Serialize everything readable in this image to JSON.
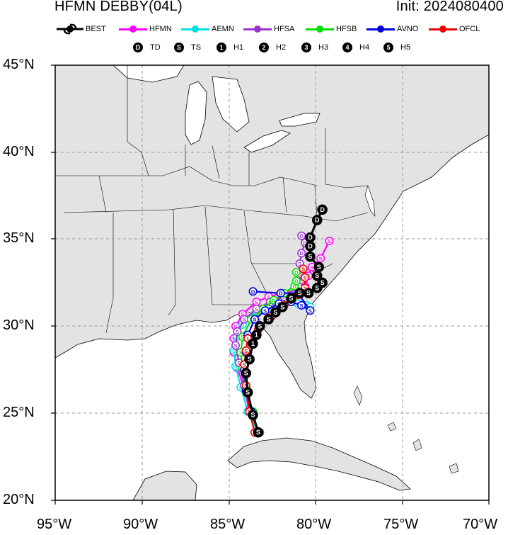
{
  "title": {
    "left": "HFMN DEBBY(04L)",
    "right": "Init: 2024080400"
  },
  "legend_models": [
    {
      "label": "BEST",
      "color": "#000000"
    },
    {
      "label": "HFMN",
      "color": "#ff00ff"
    },
    {
      "label": "AEMN",
      "color": "#00e0e0"
    },
    {
      "label": "HFSA",
      "color": "#9933cc"
    },
    {
      "label": "HFSB",
      "color": "#00dd00"
    },
    {
      "label": "AVNO",
      "color": "#0000dd"
    },
    {
      "label": "OFCL",
      "color": "#ee0000"
    }
  ],
  "legend_intensity": [
    {
      "symbol": "D",
      "label": "TD"
    },
    {
      "symbol": "S",
      "label": "TS"
    },
    {
      "symbol": "1",
      "label": "H1"
    },
    {
      "symbol": "2",
      "label": "H2"
    },
    {
      "symbol": "3",
      "label": "H3"
    },
    {
      "symbol": "4",
      "label": "H4"
    },
    {
      "symbol": "5",
      "label": "H5"
    }
  ],
  "axes": {
    "lon_ticks": [
      "95°W",
      "90°W",
      "85°W",
      "80°W",
      "75°W",
      "70°W"
    ],
    "lat_ticks": [
      "20°N",
      "25°N",
      "30°N",
      "35°N",
      "40°N",
      "45°N"
    ],
    "lon_range": [
      -95,
      -70
    ],
    "lat_range": [
      20,
      45
    ],
    "grid": "dashed"
  },
  "colors": {
    "land": "#e3e3e3",
    "water": "#ffffff",
    "borders": "#000000"
  },
  "tracks": [
    {
      "model": "BEST",
      "points": [
        [
          -83.3,
          23.9
        ],
        [
          -83.6,
          24.9
        ],
        [
          -83.9,
          26.2
        ],
        [
          -84.0,
          27.3
        ],
        [
          -83.8,
          28.1
        ],
        [
          -83.6,
          29.0
        ],
        [
          -83.4,
          29.5
        ],
        [
          -83.2,
          30.0
        ],
        [
          -82.7,
          30.4
        ],
        [
          -82.3,
          30.8
        ],
        [
          -81.9,
          31.1
        ],
        [
          -81.4,
          31.6
        ],
        [
          -80.9,
          31.9
        ],
        [
          -80.4,
          31.9
        ],
        [
          -79.9,
          32.2
        ],
        [
          -79.6,
          32.5
        ],
        [
          -79.9,
          32.9
        ],
        [
          -79.8,
          33.4
        ],
        [
          -80.3,
          34.0
        ],
        [
          -80.3,
          34.6
        ],
        [
          -80.3,
          35.1
        ],
        [
          -79.9,
          36.1
        ],
        [
          -79.6,
          36.7
        ]
      ],
      "intensity": [
        "S",
        "S",
        "S",
        "S",
        "S",
        "1",
        "1",
        "S",
        "S",
        "S",
        "S",
        "S",
        "S",
        "S",
        "S",
        "S",
        "S",
        "S",
        "S",
        "D",
        "D",
        "D",
        "D"
      ]
    },
    {
      "model": "HFMN",
      "points": [
        [
          -83.3,
          23.9
        ],
        [
          -83.8,
          25.1
        ],
        [
          -84.1,
          26.4
        ],
        [
          -84.5,
          27.6
        ],
        [
          -84.7,
          28.5
        ],
        [
          -84.7,
          29.3
        ],
        [
          -84.6,
          30.0
        ],
        [
          -84.2,
          30.7
        ],
        [
          -83.4,
          31.4
        ],
        [
          -82.7,
          31.7
        ],
        [
          -81.9,
          31.9
        ],
        [
          -81.3,
          32.0
        ],
        [
          -80.6,
          32.3
        ],
        [
          -80.4,
          32.9
        ],
        [
          -80.2,
          33.4
        ],
        [
          -79.7,
          33.9
        ],
        [
          -79.2,
          34.9
        ]
      ],
      "intensity": [
        "S",
        "S",
        "S",
        "S",
        "S",
        "S",
        "S",
        "S",
        "S",
        "S",
        "S",
        "S",
        "S",
        "S",
        "S",
        "S",
        "S"
      ]
    },
    {
      "model": "AEMN",
      "points": [
        [
          -83.3,
          23.9
        ],
        [
          -83.9,
          25.1
        ],
        [
          -84.3,
          26.5
        ],
        [
          -84.6,
          27.7
        ],
        [
          -84.7,
          28.6
        ],
        [
          -84.5,
          29.4
        ],
        [
          -84.2,
          30.1
        ],
        [
          -83.4,
          30.9
        ],
        [
          -82.6,
          31.2
        ],
        [
          -81.8,
          31.4
        ],
        [
          -81.0,
          31.3
        ],
        [
          -80.5,
          31.2
        ],
        [
          -80.3,
          31.1
        ]
      ],
      "intensity": [
        "S",
        "S",
        "S",
        "S",
        "S",
        "S",
        "S",
        "S",
        "S",
        "S",
        "S",
        "S",
        "S"
      ]
    },
    {
      "model": "HFSA",
      "points": [
        [
          -83.2,
          23.9
        ],
        [
          -83.8,
          25.2
        ],
        [
          -84.1,
          26.6
        ],
        [
          -84.4,
          27.9
        ],
        [
          -84.6,
          28.9
        ],
        [
          -84.5,
          29.7
        ],
        [
          -84.1,
          30.4
        ],
        [
          -83.4,
          31.0
        ],
        [
          -82.6,
          31.4
        ],
        [
          -81.8,
          31.7
        ],
        [
          -81.0,
          32.3
        ],
        [
          -80.8,
          33.0
        ],
        [
          -80.9,
          33.6
        ],
        [
          -80.8,
          34.2
        ],
        [
          -80.6,
          34.8
        ],
        [
          -80.8,
          35.2
        ]
      ],
      "intensity": [
        "S",
        "S",
        "S",
        "S",
        "S",
        "S",
        "S",
        "S",
        "S",
        "S",
        "S",
        "S",
        "S",
        "D",
        "D",
        "D"
      ]
    },
    {
      "model": "HFSB",
      "points": [
        [
          -83.3,
          23.9
        ],
        [
          -83.6,
          25.1
        ],
        [
          -84.0,
          26.4
        ],
        [
          -84.2,
          27.6
        ],
        [
          -84.3,
          28.5
        ],
        [
          -84.2,
          29.4
        ],
        [
          -83.7,
          30.4
        ],
        [
          -83.0,
          31.0
        ],
        [
          -82.4,
          31.5
        ],
        [
          -81.8,
          31.9
        ],
        [
          -81.2,
          32.3
        ],
        [
          -81.1,
          32.6
        ],
        [
          -81.1,
          33.1
        ]
      ],
      "intensity": [
        "S",
        "S",
        "S",
        "S",
        "S",
        "S",
        "S",
        "S",
        "D",
        "D",
        "D",
        "D",
        "D"
      ]
    },
    {
      "model": "AVNO",
      "points": [
        [
          -83.3,
          23.9
        ],
        [
          -83.7,
          25.1
        ],
        [
          -84.0,
          26.3
        ],
        [
          -84.1,
          27.5
        ],
        [
          -84.0,
          28.5
        ],
        [
          -83.9,
          29.5
        ],
        [
          -83.5,
          30.4
        ],
        [
          -82.9,
          30.9
        ],
        [
          -82.1,
          31.3
        ],
        [
          -81.4,
          31.4
        ],
        [
          -80.8,
          31.2
        ],
        [
          -80.3,
          30.9
        ],
        [
          -81.0,
          31.9
        ],
        [
          -82.0,
          31.9
        ],
        [
          -83.6,
          32.0
        ]
      ],
      "intensity": [
        "S",
        "S",
        "S",
        "S",
        "S",
        "S",
        "S",
        "S",
        "S",
        "S",
        "S",
        "S",
        "D",
        "D",
        "D"
      ]
    },
    {
      "model": "OFCL",
      "points": [
        [
          -83.5,
          23.9
        ],
        [
          -83.8,
          25.1
        ],
        [
          -84.0,
          26.6
        ],
        [
          -84.1,
          27.8
        ],
        [
          -84.0,
          28.6
        ],
        [
          -83.9,
          29.3
        ],
        [
          -83.3,
          29.8
        ],
        [
          -82.5,
          30.6
        ],
        [
          -81.8,
          31.2
        ],
        [
          -81.0,
          31.8
        ],
        [
          -80.6,
          32.2
        ],
        [
          -80.6,
          32.8
        ],
        [
          -80.7,
          33.3
        ]
      ],
      "intensity": [
        "S",
        "S",
        "S",
        "S",
        "S",
        "1",
        "S",
        "S",
        "S",
        "S",
        "S",
        "S",
        "S"
      ]
    }
  ]
}
